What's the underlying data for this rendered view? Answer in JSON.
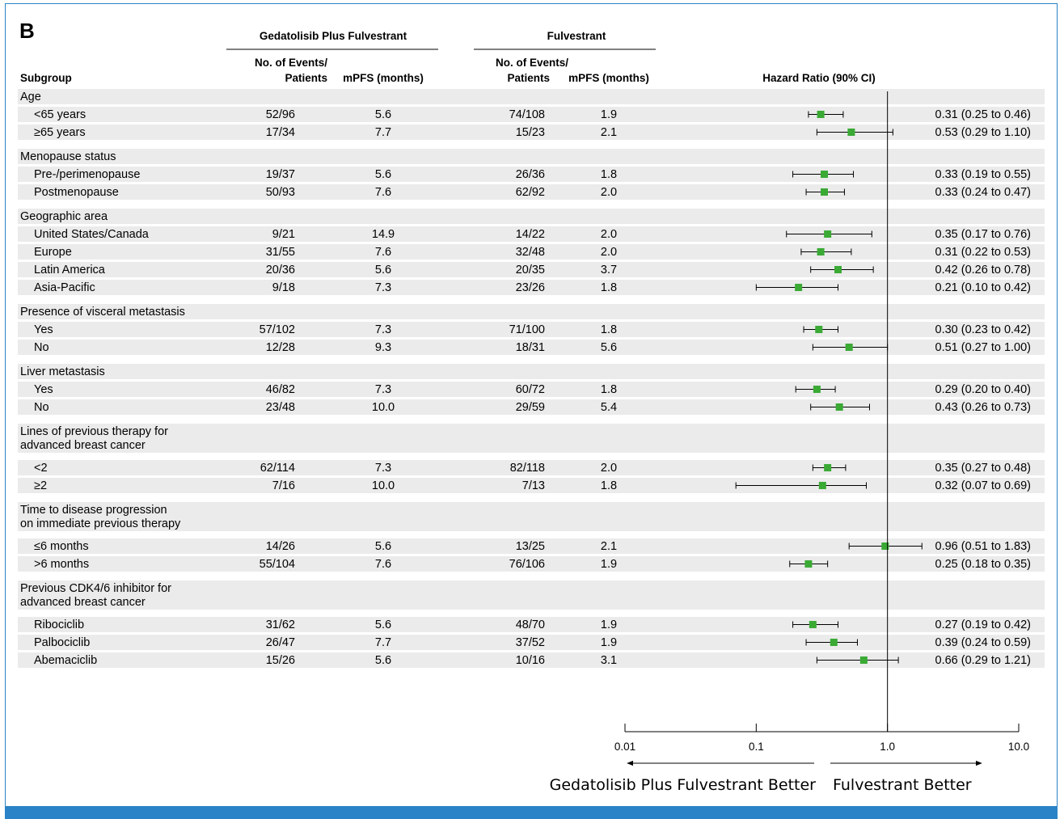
{
  "panel_label": "B",
  "headers": {
    "group1": "Gedatolisib Plus Fulvestrant",
    "group2": "Fulvestrant",
    "events_line1": "No. of Events/",
    "events_line2": "Patients",
    "mpfs": "mPFS (months)",
    "subgroup": "Subgroup",
    "hr": "Hazard Ratio (90% CI)"
  },
  "chart_data": {
    "type": "forest",
    "x_scale": "log",
    "xlim": [
      0.01,
      10.0
    ],
    "ticks": [
      "0.01",
      "0.1",
      "1.0",
      "10.0"
    ],
    "reference_line": 1.0,
    "favor_left": "Gedatolisib Plus Fulvestrant Better",
    "favor_right": "Fulvestrant Better",
    "marker_color": "#3aaa35",
    "rows": [
      {
        "kind": "header",
        "label": [
          "Age"
        ]
      },
      {
        "kind": "data",
        "label": "<65 years",
        "g_events": "52/96",
        "g_mpfs": "5.6",
        "f_events": "74/108",
        "f_mpfs": "1.9",
        "hr": 0.31,
        "lo": 0.25,
        "hi": 0.46,
        "hr_text": "0.31 (0.25 to 0.46)"
      },
      {
        "kind": "data",
        "label": "≥65 years",
        "g_events": "17/34",
        "g_mpfs": "7.7",
        "f_events": "15/23",
        "f_mpfs": "2.1",
        "hr": 0.53,
        "lo": 0.29,
        "hi": 1.1,
        "hr_text": "0.53 (0.29 to 1.10)"
      },
      {
        "kind": "header",
        "label": [
          "Menopause status"
        ]
      },
      {
        "kind": "data",
        "label": "Pre-/perimenopause",
        "g_events": "19/37",
        "g_mpfs": "5.6",
        "f_events": "26/36",
        "f_mpfs": "1.8",
        "hr": 0.33,
        "lo": 0.19,
        "hi": 0.55,
        "hr_text": "0.33 (0.19 to 0.55)"
      },
      {
        "kind": "data",
        "label": "Postmenopause",
        "g_events": "50/93",
        "g_mpfs": "7.6",
        "f_events": "62/92",
        "f_mpfs": "2.0",
        "hr": 0.33,
        "lo": 0.24,
        "hi": 0.47,
        "hr_text": "0.33 (0.24 to 0.47)"
      },
      {
        "kind": "header",
        "label": [
          "Geographic area"
        ]
      },
      {
        "kind": "data",
        "label": "United States/Canada",
        "g_events": "9/21",
        "g_mpfs": "14.9",
        "f_events": "14/22",
        "f_mpfs": "2.0",
        "hr": 0.35,
        "lo": 0.17,
        "hi": 0.76,
        "hr_text": "0.35 (0.17 to 0.76)"
      },
      {
        "kind": "data",
        "label": "Europe",
        "g_events": "31/55",
        "g_mpfs": "7.6",
        "f_events": "32/48",
        "f_mpfs": "2.0",
        "hr": 0.31,
        "lo": 0.22,
        "hi": 0.53,
        "hr_text": "0.31 (0.22 to 0.53)"
      },
      {
        "kind": "data",
        "label": "Latin America",
        "g_events": "20/36",
        "g_mpfs": "5.6",
        "f_events": "20/35",
        "f_mpfs": "3.7",
        "hr": 0.42,
        "lo": 0.26,
        "hi": 0.78,
        "hr_text": "0.42 (0.26 to 0.78)"
      },
      {
        "kind": "data",
        "label": "Asia-Pacific",
        "g_events": "9/18",
        "g_mpfs": "7.3",
        "f_events": "23/26",
        "f_mpfs": "1.8",
        "hr": 0.21,
        "lo": 0.1,
        "hi": 0.42,
        "hr_text": "0.21 (0.10 to 0.42)"
      },
      {
        "kind": "header",
        "label": [
          "Presence of visceral metastasis"
        ]
      },
      {
        "kind": "data",
        "label": "Yes",
        "g_events": "57/102",
        "g_mpfs": "7.3",
        "f_events": "71/100",
        "f_mpfs": "1.8",
        "hr": 0.3,
        "lo": 0.23,
        "hi": 0.42,
        "hr_text": "0.30 (0.23 to 0.42)"
      },
      {
        "kind": "data",
        "label": "No",
        "g_events": "12/28",
        "g_mpfs": "9.3",
        "f_events": "18/31",
        "f_mpfs": "5.6",
        "hr": 0.51,
        "lo": 0.27,
        "hi": 1.0,
        "hr_text": "0.51 (0.27 to 1.00)"
      },
      {
        "kind": "header",
        "label": [
          "Liver metastasis"
        ]
      },
      {
        "kind": "data",
        "label": "Yes",
        "g_events": "46/82",
        "g_mpfs": "7.3",
        "f_events": "60/72",
        "f_mpfs": "1.8",
        "hr": 0.29,
        "lo": 0.2,
        "hi": 0.4,
        "hr_text": "0.29 (0.20 to 0.40)"
      },
      {
        "kind": "data",
        "label": "No",
        "g_events": "23/48",
        "g_mpfs": "10.0",
        "f_events": "29/59",
        "f_mpfs": "5.4",
        "hr": 0.43,
        "lo": 0.26,
        "hi": 0.73,
        "hr_text": "0.43 (0.26 to 0.73)"
      },
      {
        "kind": "header",
        "label": [
          "Lines of previous therapy for",
          "advanced breast cancer"
        ]
      },
      {
        "kind": "data",
        "label": "<2",
        "g_events": "62/114",
        "g_mpfs": "7.3",
        "f_events": "82/118",
        "f_mpfs": "2.0",
        "hr": 0.35,
        "lo": 0.27,
        "hi": 0.48,
        "hr_text": "0.35 (0.27 to 0.48)"
      },
      {
        "kind": "data",
        "label": "≥2",
        "g_events": "7/16",
        "g_mpfs": "10.0",
        "f_events": "7/13",
        "f_mpfs": "1.8",
        "hr": 0.32,
        "lo": 0.07,
        "hi": 0.69,
        "hr_text": "0.32 (0.07 to 0.69)"
      },
      {
        "kind": "header",
        "label": [
          "Time to disease progression",
          "on immediate previous therapy"
        ]
      },
      {
        "kind": "data",
        "label": "≤6 months",
        "g_events": "14/26",
        "g_mpfs": "5.6",
        "f_events": "13/25",
        "f_mpfs": "2.1",
        "hr": 0.96,
        "lo": 0.51,
        "hi": 1.83,
        "hr_text": "0.96 (0.51 to 1.83)"
      },
      {
        "kind": "data",
        "label": ">6 months",
        "g_events": "55/104",
        "g_mpfs": "7.6",
        "f_events": "76/106",
        "f_mpfs": "1.9",
        "hr": 0.25,
        "lo": 0.18,
        "hi": 0.35,
        "hr_text": "0.25 (0.18 to 0.35)"
      },
      {
        "kind": "header",
        "label": [
          "Previous CDK4/6 inhibitor for",
          "advanced breast cancer"
        ]
      },
      {
        "kind": "data",
        "label": "Ribociclib",
        "g_events": "31/62",
        "g_mpfs": "5.6",
        "f_events": "48/70",
        "f_mpfs": "1.9",
        "hr": 0.27,
        "lo": 0.19,
        "hi": 0.42,
        "hr_text": "0.27 (0.19 to 0.42)"
      },
      {
        "kind": "data",
        "label": "Palbociclib",
        "g_events": "26/47",
        "g_mpfs": "7.7",
        "f_events": "37/52",
        "f_mpfs": "1.9",
        "hr": 0.39,
        "lo": 0.24,
        "hi": 0.59,
        "hr_text": "0.39 (0.24 to 0.59)"
      },
      {
        "kind": "data",
        "label": "Abemaciclib",
        "g_events": "15/26",
        "g_mpfs": "5.6",
        "f_events": "10/16",
        "f_mpfs": "3.1",
        "hr": 0.66,
        "lo": 0.29,
        "hi": 1.21,
        "hr_text": "0.66 (0.29 to 1.21)"
      }
    ]
  }
}
